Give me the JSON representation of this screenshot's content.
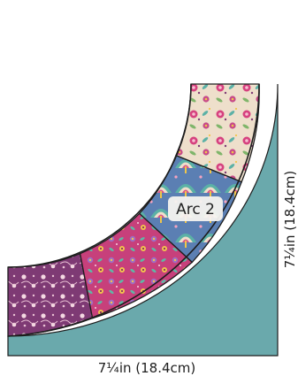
{
  "diagram": {
    "arc_label": "Arc 2",
    "width_label": "7¼in (18.4cm)",
    "height_label": "7¼in (18.4cm)",
    "colors": {
      "background_block": "#6aa9ac",
      "outline": "#1d1d1d",
      "fabric_purple": "#7e3a74",
      "fabric_magenta": "#c7407b",
      "fabric_blue": "#5b7fb3",
      "fabric_cream": "#eedfcb",
      "fabric_teal": "#5bb1a6",
      "label_box": "#f6f3ef"
    },
    "patches": [
      {
        "name": "purple-floral-patch",
        "fabric": "purple vine floral"
      },
      {
        "name": "magenta-floral-patch",
        "fabric": "magenta leaf and flower"
      },
      {
        "name": "blue-fan-patch",
        "fabric": "blue fan with teal and pink"
      },
      {
        "name": "cream-floral-patch",
        "fabric": "cream floral with pink blooms"
      }
    ]
  }
}
